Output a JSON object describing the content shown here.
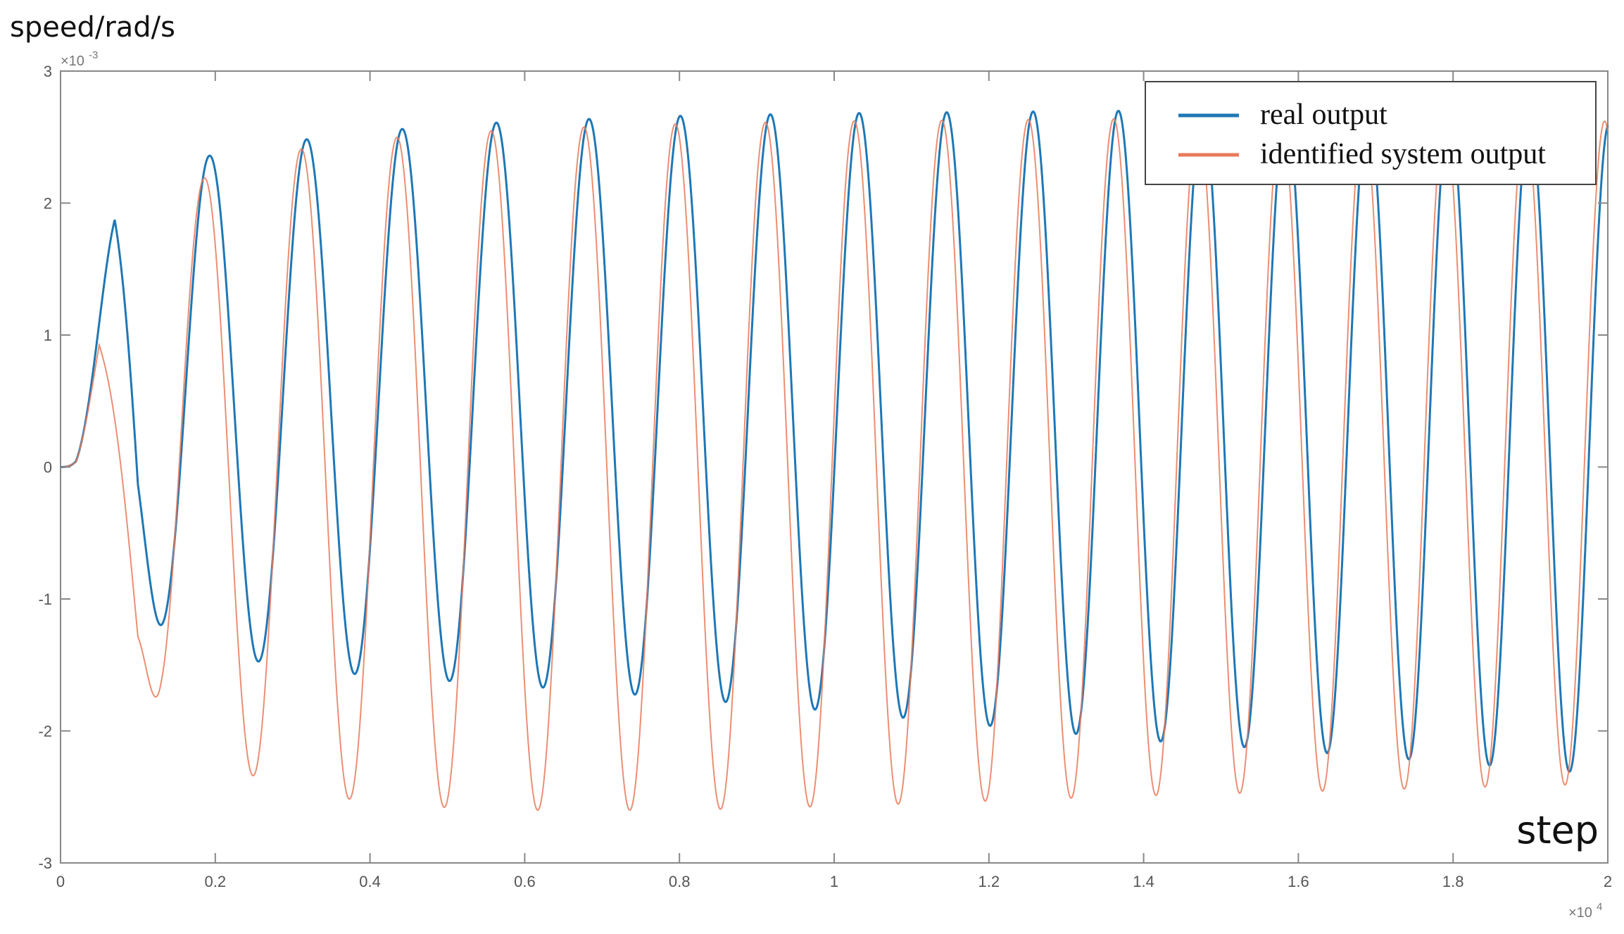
{
  "chart_data": {
    "type": "line",
    "ylabel": "speed/rad/s",
    "xlabel": "step",
    "y_multiplier": "×10-3",
    "x_multiplier": "×104",
    "xlim": [
      0,
      20000
    ],
    "ylim": [
      -0.003,
      0.003
    ],
    "x_ticks": [
      0,
      2000,
      4000,
      6000,
      8000,
      10000,
      12000,
      14000,
      16000,
      18000,
      20000
    ],
    "x_tick_labels": [
      "0",
      "0.2",
      "0.4",
      "0.6",
      "0.8",
      "1",
      "1.2",
      "1.4",
      "1.6",
      "1.8",
      "2"
    ],
    "y_ticks": [
      -0.003,
      -0.002,
      -0.001,
      0,
      0.001,
      0.002,
      0.003
    ],
    "y_tick_labels": [
      "-3",
      "-2",
      "-1",
      "0",
      "1",
      "2",
      "3"
    ],
    "grid": false,
    "legend_position": "top-right",
    "series": [
      {
        "name": "real output",
        "color": "#1f77b4",
        "description_values": {
          "envelope_x": [
            0,
            200,
            700,
            1000,
            1300,
            1800,
            2200,
            2600,
            3000,
            4000,
            5000,
            6000,
            8000,
            10000,
            12000,
            14000,
            16000,
            18000,
            20000
          ],
          "envelope_upper": [
            0,
            0.0002,
            0.0019,
            0.0012,
            0.00222,
            0.00234,
            0.0024,
            0.00244,
            0.00247,
            0.00254,
            0.00259,
            0.00262,
            0.00266,
            0.00268,
            0.00269,
            0.0027,
            0.0027,
            0.0027,
            0.0026
          ],
          "envelope_lower": [
            0,
            0,
            0.0003,
            -0.00111,
            -0.0012,
            -0.00132,
            -0.00142,
            -0.00148,
            -0.00152,
            -0.00158,
            -0.00162,
            -0.00166,
            -0.00175,
            -0.00185,
            -0.00196,
            -0.00207,
            -0.00215,
            -0.00224,
            -0.00233
          ]
        }
      },
      {
        "name": "identified system output",
        "color": "#e87a5a",
        "description_values": {
          "envelope_x": [
            0,
            200,
            500,
            1000,
            1300,
            1600,
            2000,
            2400,
            3000,
            4000,
            5000,
            6000,
            8000,
            10000,
            12000,
            14000,
            16000,
            18000,
            20000
          ],
          "envelope_upper": [
            0,
            0.0001,
            0.00095,
            -0.0003,
            0.00188,
            0.0021,
            0.00224,
            0.00232,
            0.0024,
            0.00248,
            0.00253,
            0.00256,
            0.0026,
            0.00262,
            0.00263,
            0.00264,
            0.00264,
            0.00264,
            0.00262
          ],
          "envelope_lower": [
            0,
            0,
            0.0002,
            -0.00163,
            -0.00178,
            -0.00204,
            -0.00222,
            -0.00232,
            -0.00245,
            -0.00254,
            -0.00258,
            -0.0026,
            -0.0026,
            -0.00257,
            -0.00253,
            -0.00249,
            -0.00246,
            -0.00243,
            -0.0024
          ]
        }
      }
    ]
  }
}
